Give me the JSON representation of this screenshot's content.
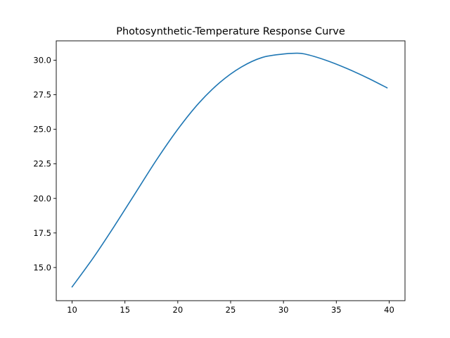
{
  "chart_data": {
    "type": "line",
    "title": "Photosynthetic-Temperature Response Curve",
    "xlabel": "",
    "ylabel": "",
    "xlim": [
      8.5,
      41.5
    ],
    "ylim": [
      12.6,
      31.4
    ],
    "x_ticks": [
      10,
      15,
      20,
      25,
      30,
      35,
      40
    ],
    "x_tick_labels": [
      "10",
      "15",
      "20",
      "25",
      "30",
      "35",
      "40"
    ],
    "y_ticks": [
      15.0,
      17.5,
      20.0,
      22.5,
      25.0,
      27.5,
      30.0
    ],
    "y_tick_labels": [
      "15.0",
      "17.5",
      "20.0",
      "22.5",
      "25.0",
      "27.5",
      "30.0"
    ],
    "grid": false,
    "legend": "none",
    "series": [
      {
        "color": "#1f77b4",
        "x": [
          10,
          12,
          14,
          16,
          18,
          20,
          22,
          24,
          26,
          28,
          30,
          31,
          32,
          34,
          36,
          38,
          39.8
        ],
        "y": [
          13.6,
          15.7,
          18.0,
          20.4,
          22.8,
          25.0,
          26.9,
          28.4,
          29.5,
          30.2,
          30.45,
          30.5,
          30.45,
          30.0,
          29.4,
          28.7,
          28.0
        ]
      }
    ]
  }
}
